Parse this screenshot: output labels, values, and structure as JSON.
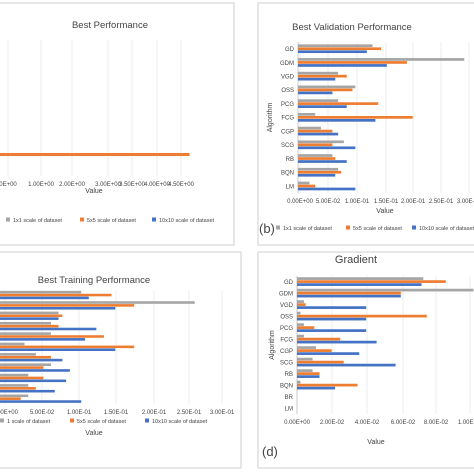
{
  "colors": {
    "s1": "#a5a5a5",
    "s2": "#ed7d31",
    "s3": "#4472c4"
  },
  "legend_labels": [
    "1x1 scale of dataset",
    "5x5 scale of dataset",
    "10x10 scale of dataset"
  ],
  "chart_data": [
    {
      "type": "bar",
      "orientation": "horizontal",
      "title": "Best Performance",
      "xlabel": "Value",
      "ylabel": "",
      "x_ticks": [
        "0E+00",
        "1.00E+00",
        "2.00E+00",
        "3.00E+00",
        "3.50E+00",
        "4.00E+00",
        "4.50E+00"
      ],
      "xlim": [
        0,
        4.7
      ],
      "series": [
        {
          "name": "5x5 scale of dataset",
          "values": [
            4.02
          ]
        }
      ]
    },
    {
      "type": "bar",
      "orientation": "horizontal",
      "title": "Best Validation Performance",
      "panel_label": "(b)",
      "xlabel": "Value",
      "ylabel": "Algorithm",
      "categories": [
        "GD",
        "GDM",
        "VGD",
        "OSS",
        "PCG",
        "FCG",
        "CGP",
        "SCG",
        "RB",
        "BQN",
        "LM"
      ],
      "x_ticks": [
        "0.00E+00",
        "5.00E-02",
        "1.00E-01",
        "1.50E-01",
        "2.00E-01",
        "2.50E-01",
        "3.00E-01"
      ],
      "xlim": [
        0,
        0.3
      ],
      "series": [
        {
          "name": "1x1 scale of dataset",
          "values": [
            0.13,
            0.29,
            0.07,
            0.1,
            0.07,
            0.03,
            0.04,
            0.08,
            0.06,
            0.07,
            0.02
          ]
        },
        {
          "name": "5x5 scale of dataset",
          "values": [
            0.145,
            0.19,
            0.085,
            0.095,
            0.14,
            0.2,
            0.06,
            0.06,
            0.065,
            0.075,
            0.03
          ]
        },
        {
          "name": "10x10 scale of dataset",
          "values": [
            0.12,
            0.155,
            0.065,
            0.06,
            0.085,
            0.135,
            0.07,
            0.1,
            0.085,
            0.065,
            0.1
          ]
        }
      ]
    },
    {
      "type": "bar",
      "orientation": "horizontal",
      "title": "Best Training Performance",
      "xlabel": "Value",
      "ylabel": "",
      "x_ticks": [
        "0.00E+00",
        "5.00E-02",
        "1.00E-01",
        "1.50E-01",
        "2.00E-01",
        "2.50E-01",
        "3.00E-01"
      ],
      "xlim": [
        0,
        0.3
      ],
      "series": [
        {
          "name": "1x1 scale of dataset",
          "values": [
            0.11,
            0.26,
            0.08,
            0.07,
            0.07,
            0.035,
            0.05,
            0.07,
            0.04,
            0.04,
            0.04
          ]
        },
        {
          "name": "5x5 scale of dataset",
          "values": [
            0.15,
            0.18,
            0.085,
            0.08,
            0.14,
            0.18,
            0.07,
            0.06,
            0.06,
            0.05,
            0.03
          ]
        },
        {
          "name": "10x10 scale of dataset",
          "values": [
            0.12,
            0.155,
            0.08,
            0.13,
            0.115,
            0.155,
            0.085,
            0.095,
            0.09,
            0.075,
            0.11
          ]
        }
      ]
    },
    {
      "type": "bar",
      "orientation": "horizontal",
      "title": "Gradient",
      "panel_label": "(d)",
      "xlabel": "Value",
      "ylabel": "Algorithm",
      "categories": [
        "GD",
        "GDM",
        "VGD",
        "OSS",
        "PCG",
        "FCG",
        "CGP",
        "SCG",
        "RB",
        "BQN",
        "BR",
        "LM"
      ],
      "x_ticks": [
        "0.00E+00",
        "2.00E-02",
        "4.00E-02",
        "6.00E-02",
        "8.00E-02",
        "1.00E-01"
      ],
      "xlim": [
        0,
        0.1
      ],
      "series": [
        {
          "name": "1x1 scale of dataset",
          "values": [
            0.073,
            0.102,
            0.004,
            0.002,
            0.004,
            0.004,
            0.011,
            0.009,
            0.009,
            0.002,
            0,
            0
          ]
        },
        {
          "name": "5x5 scale of dataset",
          "values": [
            0.086,
            0.06,
            0.005,
            0.075,
            0.01,
            0.025,
            0.02,
            0.027,
            0.013,
            0.035,
            0,
            0
          ]
        },
        {
          "name": "10x10 scale of dataset",
          "values": [
            0.072,
            0.06,
            0.04,
            0.04,
            0.04,
            0.046,
            0.036,
            0.057,
            0.013,
            0.022,
            0,
            0
          ]
        }
      ]
    }
  ]
}
